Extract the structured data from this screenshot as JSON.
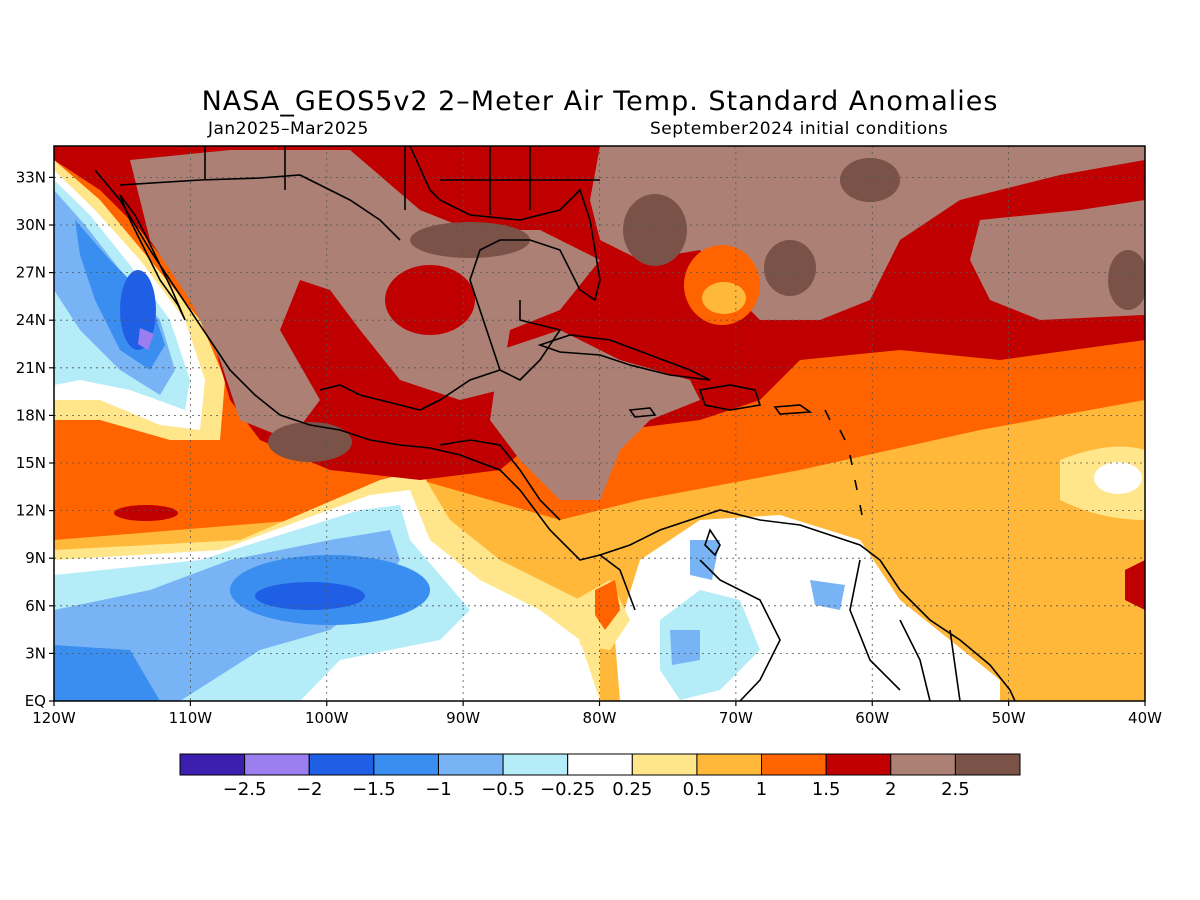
{
  "title": "NASA_GEOS5v2 2–Meter Air Temp. Standard Anomalies",
  "subtitle_left": "Jan2025–Mar2025",
  "subtitle_right": "September2024 initial conditions",
  "lat_labels": [
    "33N",
    "30N",
    "27N",
    "24N",
    "21N",
    "18N",
    "15N",
    "12N",
    "9N",
    "6N",
    "3N",
    "EQ"
  ],
  "lon_labels": [
    "120W",
    "110W",
    "100W",
    "90W",
    "80W",
    "70W",
    "60W",
    "50W",
    "40W"
  ],
  "colorbar": {
    "colors": [
      "#3d1fb0",
      "#9b7ef0",
      "#1f5fe6",
      "#3a8ef0",
      "#78b4f5",
      "#b4ecf8",
      "#ffffff",
      "#ffe68a",
      "#ffb83a",
      "#ff6400",
      "#c00000",
      "#ac8074",
      "#7a5248"
    ],
    "labels": [
      "−2.5",
      "−2",
      "−1.5",
      "−1",
      "−0.5",
      "−0.25",
      "0.25",
      "0.5",
      "1",
      "1.5",
      "2",
      "2.5"
    ]
  },
  "colors": {
    "frame": "#000000",
    "ocean_background": "#ff6400"
  }
}
